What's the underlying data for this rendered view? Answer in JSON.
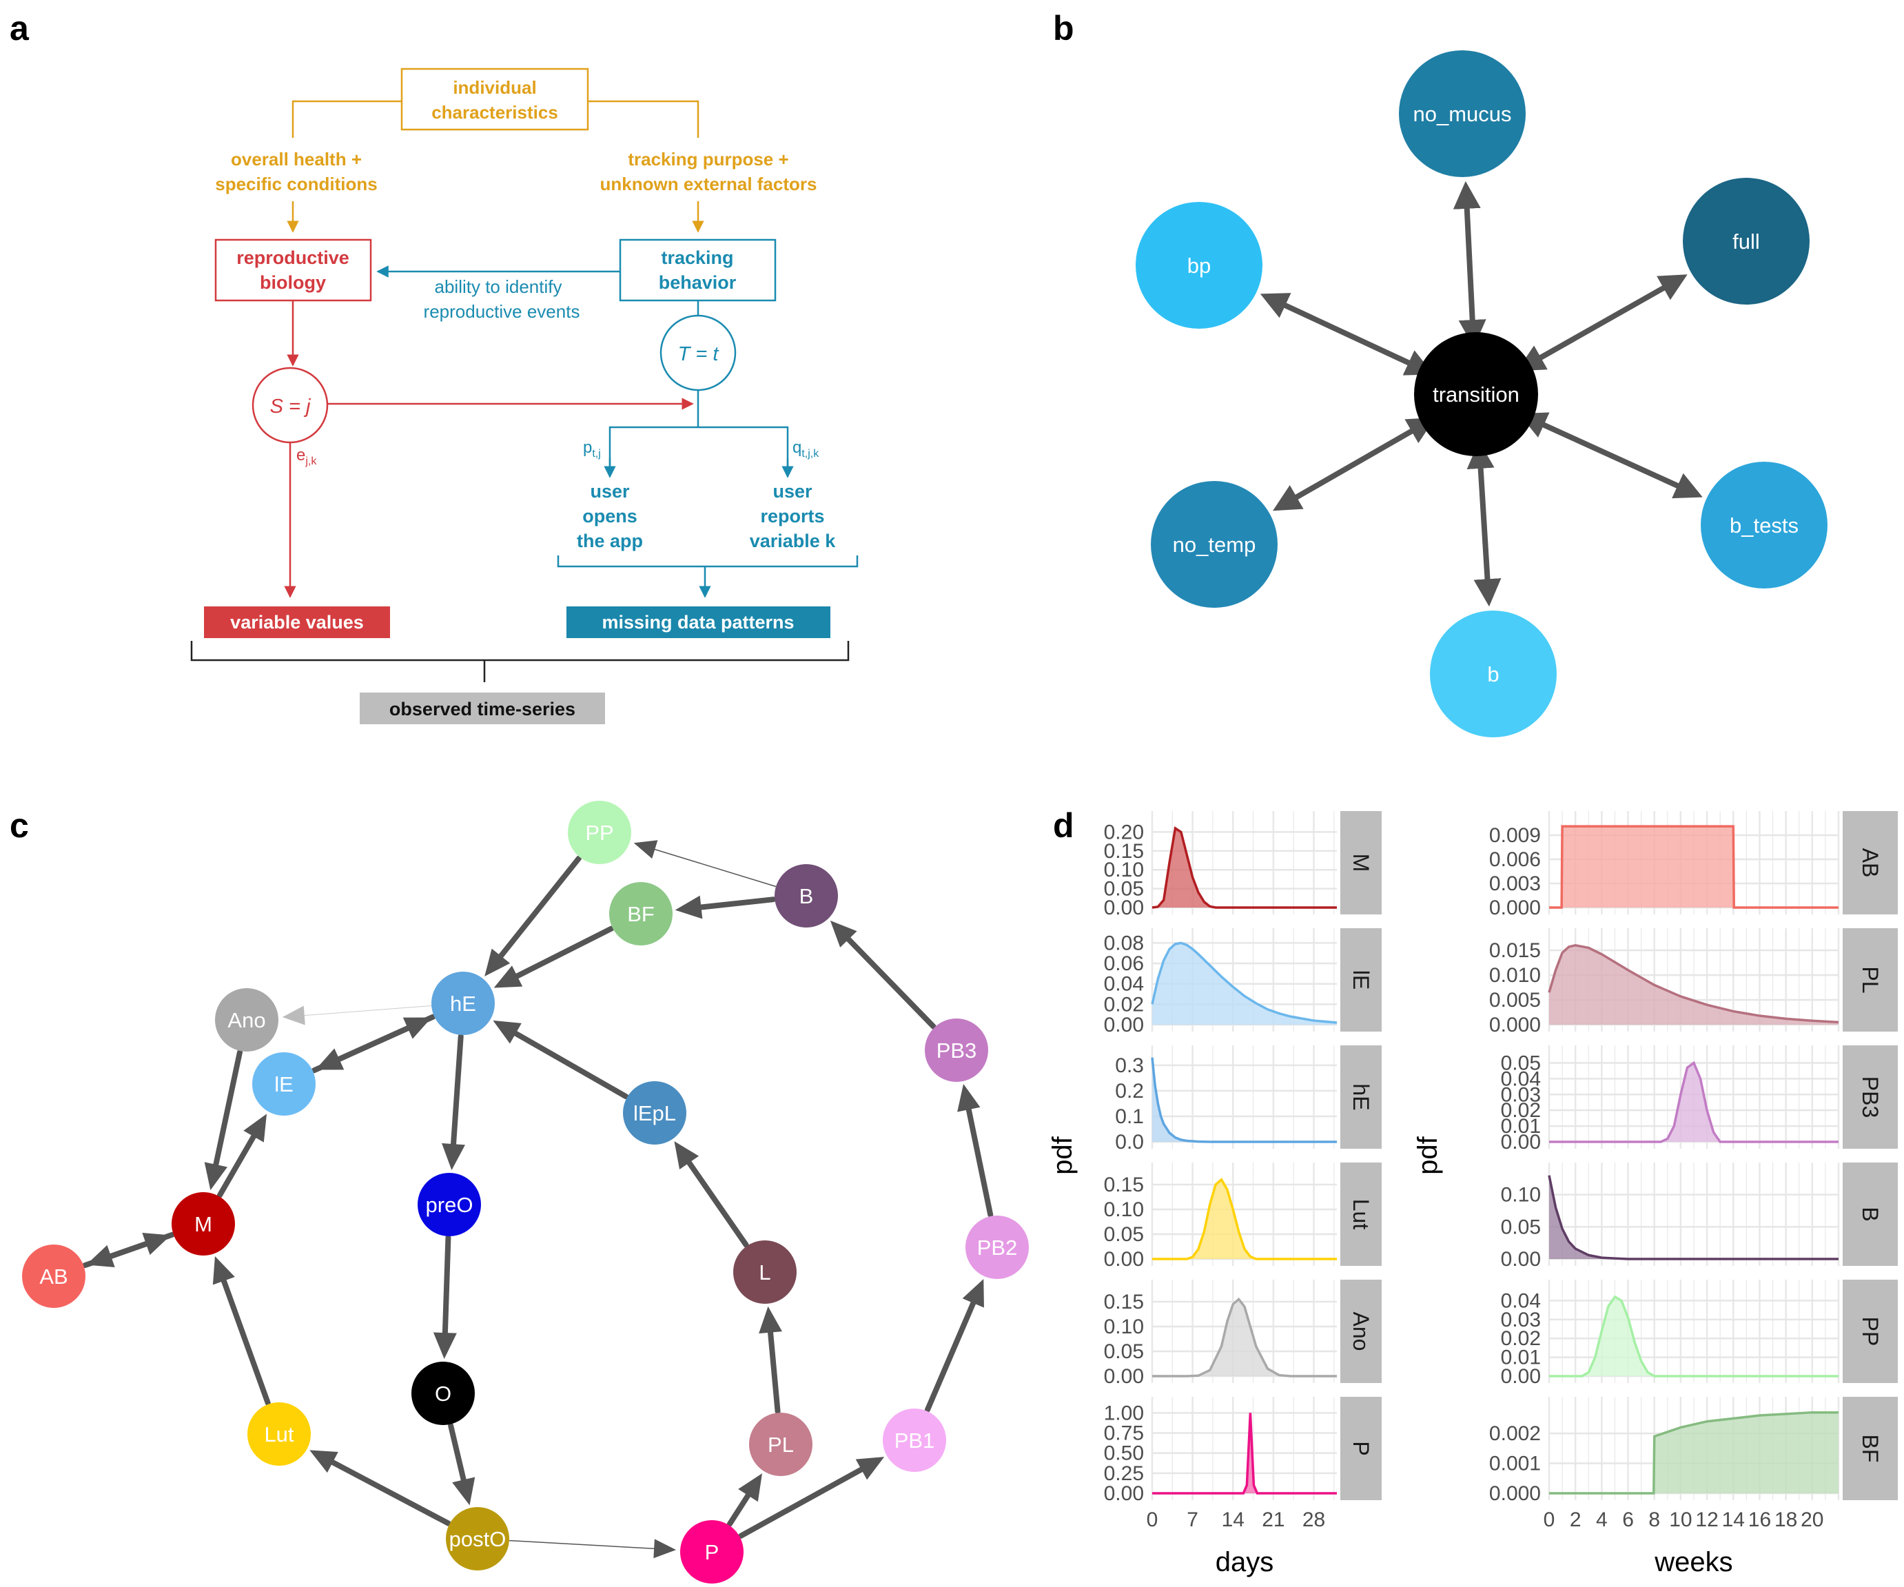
{
  "panel_labels": {
    "a": "a",
    "b": "b",
    "c": "c",
    "d": "d"
  },
  "colors": {
    "orange": "#E0A11B",
    "red": "#D33A3F",
    "blue": "#1A8BB0",
    "red_fill": "#D53E41",
    "blue_fill": "#1A87AB",
    "grey_fill": "#BDBDBD",
    "edge": "#555555",
    "strip": "#BDBDBD",
    "grid": "#E6E6E6"
  },
  "panel_a": {
    "individual_l1": "individual",
    "individual_l2": "characteristics",
    "health_l1": "overall health +",
    "health_l2": "specific conditions",
    "tracking_l1": "tracking purpose +",
    "tracking_l2": "unknown external factors",
    "repro_l1": "reproductive",
    "repro_l2": "biology",
    "behav_l1": "tracking",
    "behav_l2": "behavior",
    "ability_l1": "ability to identify",
    "ability_l2": "reproductive events",
    "S_circle": "S = j",
    "T_circle": "T = t",
    "e_main": "e",
    "e_sub": "j,k",
    "p_main": "p",
    "p_sub": "t,j",
    "q_main": "q",
    "q_sub": "t,j,k",
    "opens_l1": "user",
    "opens_l2": "opens",
    "opens_l3": "the app",
    "reports_l1": "user",
    "reports_l2": "reports",
    "reports_l3": "variable k",
    "variable_values": "variable values",
    "missing_patterns": "missing data patterns",
    "observed": "observed time-series"
  },
  "panel_b": {
    "center": {
      "label": "transition",
      "color": "#000000"
    },
    "nodes": [
      {
        "id": "no_mucus",
        "label": "no_mucus",
        "color": "#1F7EA4"
      },
      {
        "id": "full",
        "label": "full",
        "color": "#1B6585"
      },
      {
        "id": "bp",
        "label": "bp",
        "color": "#2EC0F5"
      },
      {
        "id": "no_temp",
        "label": "no_temp",
        "color": "#2488B5"
      },
      {
        "id": "b_tests",
        "label": "b_tests",
        "color": "#2CA5DB"
      },
      {
        "id": "b",
        "label": "b",
        "color": "#4ACDF8"
      }
    ]
  },
  "panel_c": {
    "nodes": [
      {
        "id": "PP",
        "label": "PP",
        "color": "#B5F5B5"
      },
      {
        "id": "BF",
        "label": "BF",
        "color": "#8DC887"
      },
      {
        "id": "B",
        "label": "B",
        "color": "#714F76"
      },
      {
        "id": "hE",
        "label": "hE",
        "color": "#5FA5DE"
      },
      {
        "id": "Ano",
        "label": "Ano",
        "color": "#A8A8A8"
      },
      {
        "id": "lE",
        "label": "lE",
        "color": "#6CBCF4"
      },
      {
        "id": "PB3",
        "label": "PB3",
        "color": "#C37BC4"
      },
      {
        "id": "lEpL",
        "label": "lEpL",
        "color": "#4A8DC1"
      },
      {
        "id": "M",
        "label": "M",
        "color": "#C00000"
      },
      {
        "id": "preO",
        "label": "preO",
        "color": "#0707E2"
      },
      {
        "id": "AB",
        "label": "AB",
        "color": "#F5635F"
      },
      {
        "id": "L",
        "label": "L",
        "color": "#7A4954"
      },
      {
        "id": "PB2",
        "label": "PB2",
        "color": "#E59AE5"
      },
      {
        "id": "O",
        "label": "O",
        "color": "#000000"
      },
      {
        "id": "Lut",
        "label": "Lut",
        "color": "#FFD205"
      },
      {
        "id": "PL",
        "label": "PL",
        "color": "#C47E8D"
      },
      {
        "id": "PB1",
        "label": "PB1",
        "color": "#F5ADF5"
      },
      {
        "id": "postO",
        "label": "postO",
        "color": "#BA9A0C"
      },
      {
        "id": "P",
        "label": "P",
        "color": "#FF0186"
      }
    ],
    "edges": [
      {
        "from": "PP",
        "to": "hE",
        "weight": "thick"
      },
      {
        "from": "BF",
        "to": "hE",
        "weight": "thick"
      },
      {
        "from": "B",
        "to": "BF",
        "weight": "thick"
      },
      {
        "from": "B",
        "to": "PP",
        "weight": "thin"
      },
      {
        "from": "PB3",
        "to": "B",
        "weight": "thick"
      },
      {
        "from": "PB2",
        "to": "PB3",
        "weight": "thick"
      },
      {
        "from": "PB1",
        "to": "PB2",
        "weight": "thick"
      },
      {
        "from": "P",
        "to": "PB1",
        "weight": "thick"
      },
      {
        "from": "P",
        "to": "PL",
        "weight": "thick"
      },
      {
        "from": "PL",
        "to": "L",
        "weight": "thick"
      },
      {
        "from": "L",
        "to": "lEpL",
        "weight": "thick"
      },
      {
        "from": "lEpL",
        "to": "hE",
        "weight": "thick"
      },
      {
        "from": "hE",
        "to": "preO",
        "weight": "thick"
      },
      {
        "from": "preO",
        "to": "O",
        "weight": "thick"
      },
      {
        "from": "O",
        "to": "postO",
        "weight": "thick"
      },
      {
        "from": "postO",
        "to": "Lut",
        "weight": "thick"
      },
      {
        "from": "postO",
        "to": "P",
        "weight": "thin"
      },
      {
        "from": "Lut",
        "to": "M",
        "weight": "thick"
      },
      {
        "from": "Ano",
        "to": "M",
        "weight": "thick"
      },
      {
        "from": "M",
        "to": "lE",
        "weight": "thick"
      },
      {
        "from": "hE",
        "to": "lE",
        "weight": "thick"
      },
      {
        "from": "lE",
        "to": "hE",
        "weight": "thick"
      },
      {
        "from": "hE",
        "to": "Ano",
        "weight": "faint"
      },
      {
        "from": "AB",
        "to": "M",
        "weight": "thick"
      },
      {
        "from": "M",
        "to": "AB",
        "weight": "thick"
      }
    ]
  },
  "chart_data": [
    {
      "type": "area",
      "title": "",
      "xlabel": "days",
      "ylabel": "pdf",
      "x_ticks": [
        "0",
        "7",
        "14",
        "21",
        "28"
      ],
      "xlim": [
        0,
        32
      ],
      "facets": [
        {
          "label": "M",
          "color": "#B21E22",
          "fill": "#D76A6C",
          "y_ticks": [
            "0.20",
            "0.15",
            "0.10",
            "0.05",
            "0.00"
          ],
          "ylim": [
            0,
            0.23
          ],
          "x": [
            0,
            1,
            2,
            3,
            4,
            5,
            6,
            7,
            8,
            9,
            10,
            11,
            12,
            20,
            32
          ],
          "y": [
            0,
            0.002,
            0.02,
            0.12,
            0.21,
            0.2,
            0.14,
            0.08,
            0.04,
            0.015,
            0.003,
            0,
            0,
            0,
            0
          ]
        },
        {
          "label": "lE",
          "color": "#6CB7EC",
          "fill": "#BCDDF7",
          "y_ticks": [
            "0.08",
            "0.06",
            "0.04",
            "0.02",
            "0.00"
          ],
          "ylim": [
            0,
            0.085
          ],
          "x": [
            0,
            1,
            2,
            3,
            4,
            5,
            6,
            7,
            8,
            10,
            12,
            14,
            16,
            18,
            20,
            22,
            24,
            26,
            28,
            30,
            32
          ],
          "y": [
            0.02,
            0.045,
            0.063,
            0.074,
            0.079,
            0.08,
            0.078,
            0.074,
            0.069,
            0.058,
            0.047,
            0.037,
            0.028,
            0.021,
            0.015,
            0.011,
            0.008,
            0.006,
            0.004,
            0.003,
            0.002
          ]
        },
        {
          "label": "hE",
          "color": "#5DA5E0",
          "fill": "#B5D6F2",
          "y_ticks": [
            "0.3",
            "0.2",
            "0.1",
            "0.0"
          ],
          "ylim": [
            0,
            0.34
          ],
          "x": [
            0,
            0.5,
            1,
            1.5,
            2,
            3,
            4,
            5,
            6,
            8,
            10,
            14,
            32
          ],
          "y": [
            0.33,
            0.22,
            0.15,
            0.1,
            0.07,
            0.035,
            0.017,
            0.008,
            0.004,
            0.001,
            0,
            0,
            0
          ]
        },
        {
          "label": "Lut",
          "color": "#FFD208",
          "fill": "#FFE57A",
          "y_ticks": [
            "0.15",
            "0.10",
            "0.05",
            "0.00"
          ],
          "ylim": [
            0,
            0.175
          ],
          "x": [
            0,
            6,
            7,
            8,
            9,
            10,
            11,
            12,
            13,
            14,
            15,
            16,
            17,
            18,
            32
          ],
          "y": [
            0,
            0,
            0.004,
            0.02,
            0.055,
            0.11,
            0.15,
            0.16,
            0.14,
            0.1,
            0.055,
            0.02,
            0.005,
            0,
            0
          ]
        },
        {
          "label": "Ano",
          "color": "#A9A9A9",
          "fill": "#DADADA",
          "y_ticks": [
            "0.15",
            "0.10",
            "0.05",
            "0.00"
          ],
          "ylim": [
            0,
            0.175
          ],
          "x": [
            0,
            6,
            8,
            10,
            12,
            13,
            14,
            15,
            16,
            17,
            18,
            20,
            22,
            24,
            32
          ],
          "y": [
            0,
            0,
            0.001,
            0.012,
            0.06,
            0.11,
            0.145,
            0.155,
            0.14,
            0.1,
            0.06,
            0.015,
            0.002,
            0,
            0
          ]
        },
        {
          "label": "P",
          "color": "#EC1186",
          "fill": "#F56EB3",
          "y_ticks": [
            "1.00",
            "0.75",
            "0.50",
            "0.25",
            "0.00"
          ],
          "ylim": [
            0,
            1.08
          ],
          "x": [
            0,
            15.8,
            16.4,
            17,
            17.6,
            18.2,
            32
          ],
          "y": [
            0,
            0,
            0.1,
            1.0,
            0.1,
            0,
            0
          ]
        }
      ]
    },
    {
      "type": "area",
      "title": "",
      "xlabel": "weeks",
      "ylabel": "pdf",
      "x_ticks": [
        "0",
        "2",
        "4",
        "6",
        "8",
        "10",
        "12",
        "14",
        "16",
        "18",
        "20"
      ],
      "xlim": [
        0,
        22
      ],
      "facets": [
        {
          "label": "AB",
          "color": "#F06A60",
          "fill": "#F7A9A2",
          "y_ticks": [
            "0.009",
            "0.006",
            "0.003",
            "0.000"
          ],
          "ylim": [
            0,
            0.0108
          ],
          "x": [
            0,
            0.95,
            1,
            14,
            14.05,
            22
          ],
          "y": [
            0,
            0,
            0.0101,
            0.0101,
            0,
            0
          ]
        },
        {
          "label": "PL",
          "color": "#B5707E",
          "fill": "#D9AEB7",
          "y_ticks": [
            "0.015",
            "0.010",
            "0.005",
            "0.000"
          ],
          "ylim": [
            0,
            0.0175
          ],
          "x": [
            0,
            0.5,
            1,
            1.5,
            2,
            3,
            4,
            5,
            6,
            7,
            8,
            10,
            12,
            14,
            16,
            18,
            20,
            22
          ],
          "y": [
            0.0065,
            0.011,
            0.0145,
            0.0157,
            0.016,
            0.0155,
            0.0142,
            0.0126,
            0.011,
            0.0095,
            0.008,
            0.0057,
            0.004,
            0.0027,
            0.0018,
            0.0012,
            0.0008,
            0.0005
          ]
        },
        {
          "label": "PB3",
          "color": "#C27CC5",
          "fill": "#DFB8E0",
          "y_ticks": [
            "0.05",
            "0.04",
            "0.03",
            "0.02",
            "0.01",
            "0.00"
          ],
          "ylim": [
            0,
            0.055
          ],
          "x": [
            0,
            8.5,
            9,
            9.5,
            10,
            10.5,
            11,
            11.5,
            12,
            12.5,
            13,
            22
          ],
          "y": [
            0,
            0,
            0.002,
            0.01,
            0.03,
            0.047,
            0.05,
            0.04,
            0.02,
            0.006,
            0,
            0
          ]
        },
        {
          "label": "B",
          "color": "#5E3D63",
          "fill": "#9E85A2",
          "y_ticks": [
            "0.10",
            "0.05",
            "0.00"
          ],
          "ylim": [
            0,
            0.135
          ],
          "x": [
            0,
            0.2,
            0.5,
            1,
            1.5,
            2,
            3,
            4,
            5,
            6,
            22
          ],
          "y": [
            0.13,
            0.11,
            0.08,
            0.047,
            0.027,
            0.016,
            0.006,
            0.002,
            0.001,
            0,
            0
          ]
        },
        {
          "label": "PP",
          "color": "#A5F0A5",
          "fill": "#D4F8D4",
          "y_ticks": [
            "0.04",
            "0.03",
            "0.02",
            "0.01",
            "0.00"
          ],
          "ylim": [
            0,
            0.046
          ],
          "x": [
            0,
            2.5,
            3,
            3.5,
            4,
            4.5,
            5,
            5.5,
            6,
            6.5,
            7,
            7.5,
            8,
            22
          ],
          "y": [
            0,
            0,
            0.002,
            0.01,
            0.024,
            0.037,
            0.042,
            0.04,
            0.031,
            0.018,
            0.008,
            0.002,
            0,
            0
          ]
        },
        {
          "label": "BF",
          "color": "#85BB80",
          "fill": "#BEDDBA",
          "y_ticks": [
            "0.002",
            "0.001",
            "0.000"
          ],
          "ylim": [
            0,
            0.0029
          ],
          "x": [
            0,
            7.95,
            8,
            10,
            12,
            14,
            16,
            18,
            20,
            22
          ],
          "y": [
            0,
            0,
            0.0019,
            0.0022,
            0.0024,
            0.0025,
            0.0026,
            0.00265,
            0.0027,
            0.0027
          ]
        }
      ]
    }
  ]
}
